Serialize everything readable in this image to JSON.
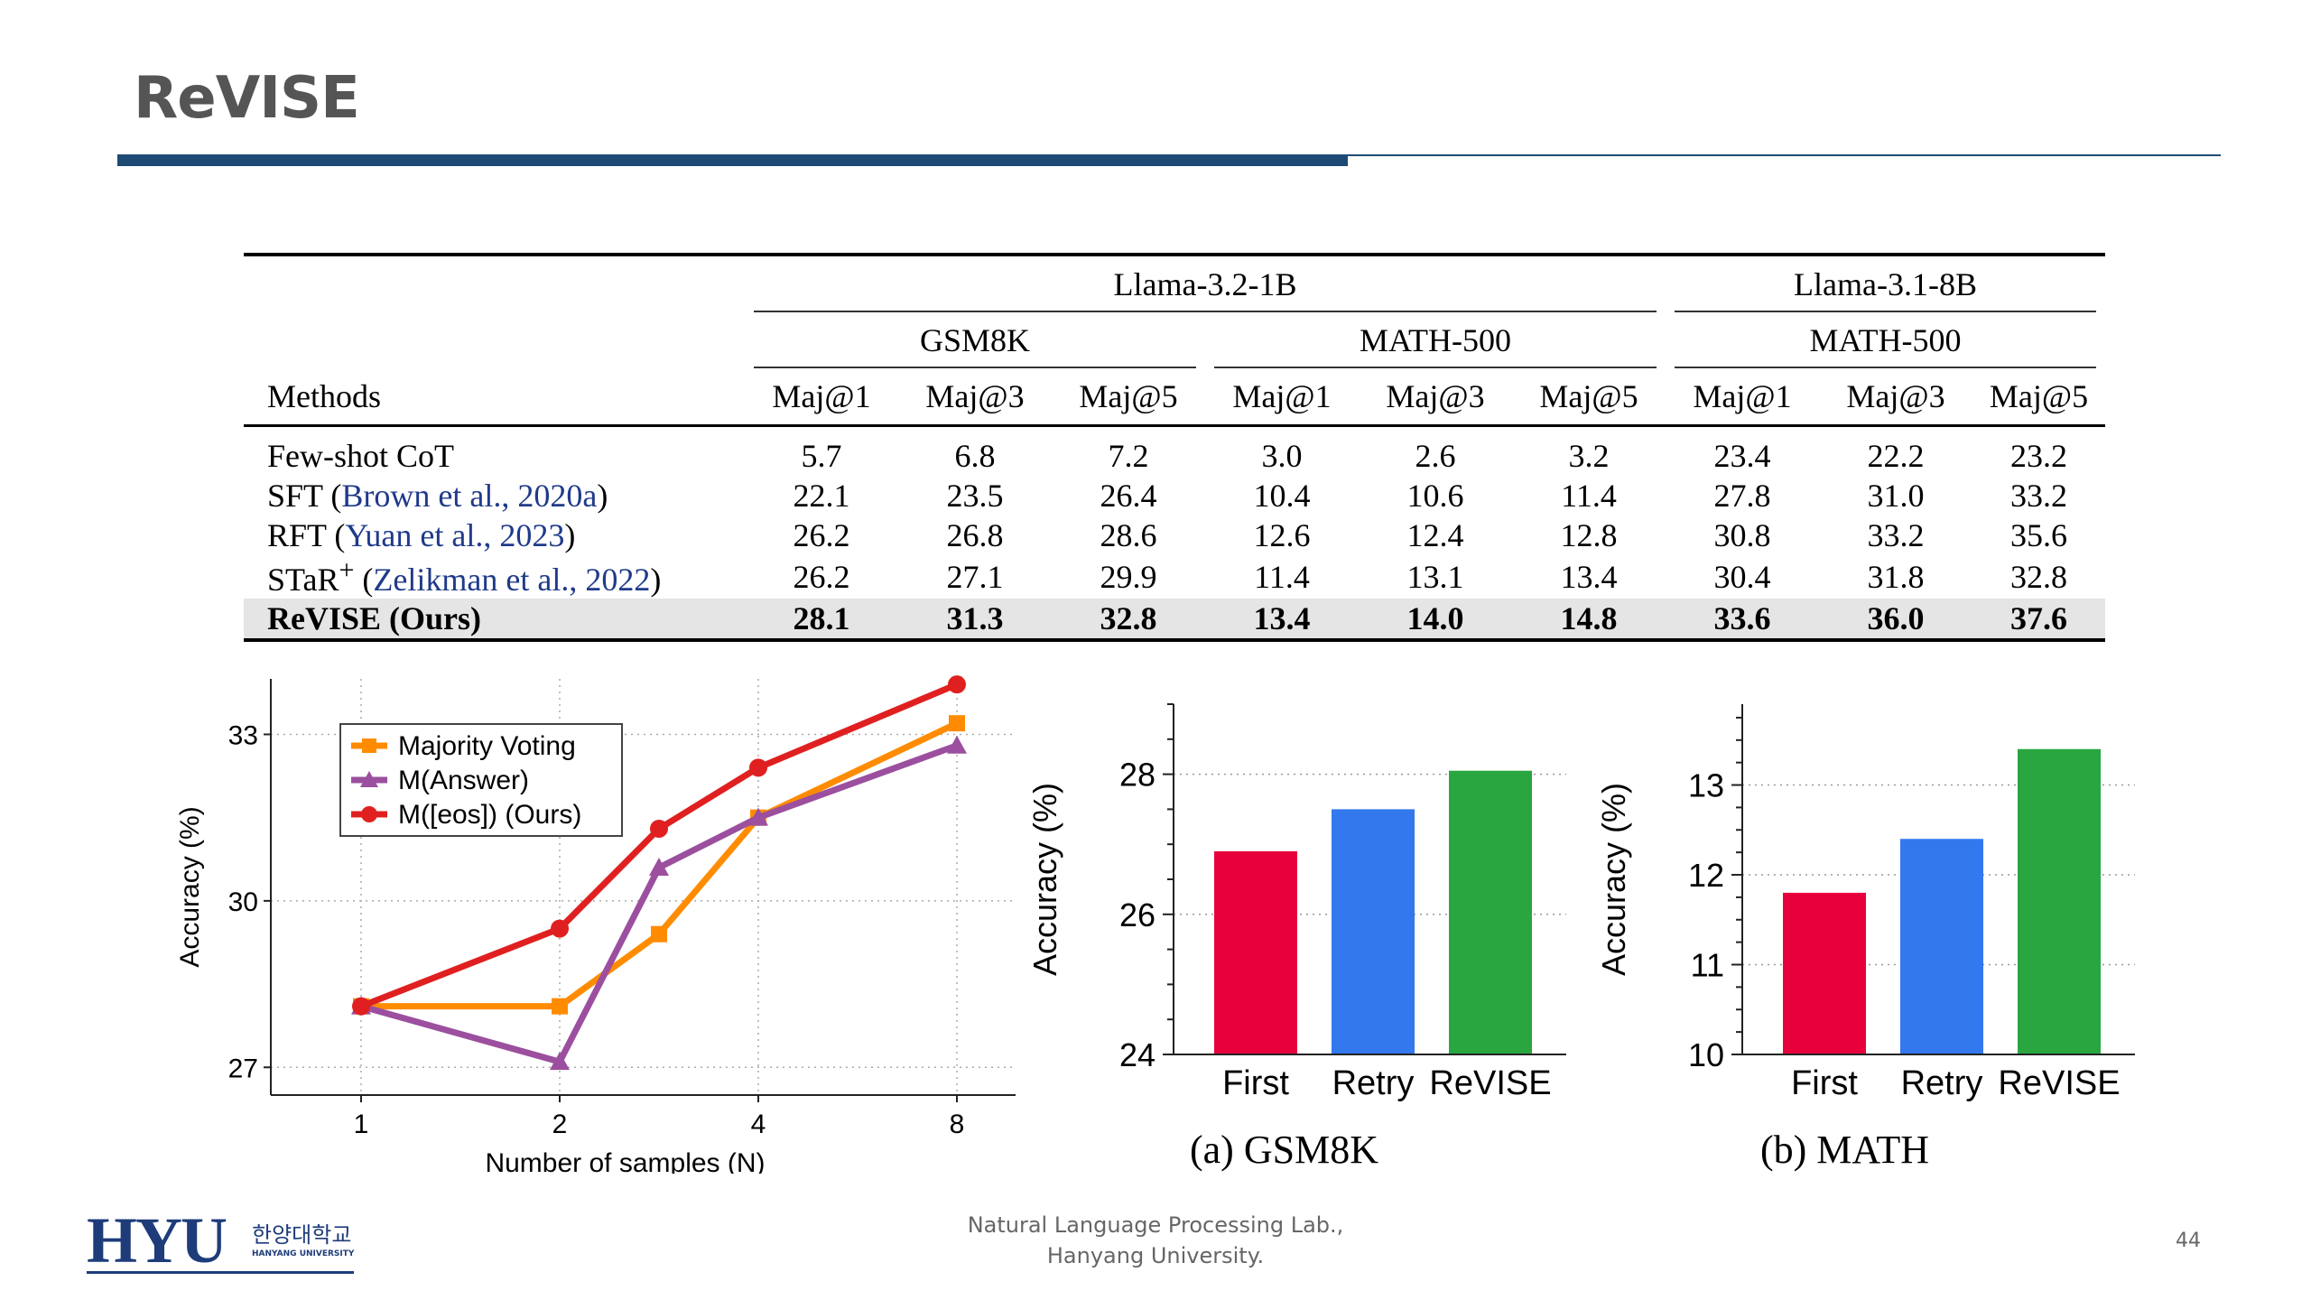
{
  "slide": {
    "title": "ReVISE",
    "footer_line1": "Natural Language Processing Lab.,",
    "footer_line2": "Hanyang University.",
    "page_number": "44",
    "logo_text": "HYU",
    "logo_korean": "한양대학교",
    "logo_english": "HANYANG UNIVERSITY",
    "accent_color": "#1e4b75"
  },
  "table": {
    "model_headers": [
      "Llama-3.2-1B",
      "Llama-3.1-8B"
    ],
    "dataset_headers": [
      "GSM8K",
      "MATH-500",
      "MATH-500"
    ],
    "methods_header": "Methods",
    "metric_headers": [
      "Maj@1",
      "Maj@3",
      "Maj@5",
      "Maj@1",
      "Maj@3",
      "Maj@5",
      "Maj@1",
      "Maj@3",
      "Maj@5"
    ],
    "rows": [
      {
        "name": "Few-shot CoT",
        "cite_pre": "",
        "cite": "",
        "cite_post": "",
        "values": [
          "5.7",
          "6.8",
          "7.2",
          "3.0",
          "2.6",
          "3.2",
          "23.4",
          "22.2",
          "23.2"
        ]
      },
      {
        "name": "SFT",
        "cite_pre": "(",
        "cite": "Brown et al., 2020a",
        "cite_post": ")",
        "values": [
          "22.1",
          "23.5",
          "26.4",
          "10.4",
          "10.6",
          "11.4",
          "27.8",
          "31.0",
          "33.2"
        ]
      },
      {
        "name": "RFT",
        "cite_pre": "(",
        "cite": "Yuan et al., 2023",
        "cite_post": ")",
        "values": [
          "26.2",
          "26.8",
          "28.6",
          "12.6",
          "12.4",
          "12.8",
          "30.8",
          "33.2",
          "35.6"
        ]
      },
      {
        "name": "STaR",
        "sup": "+",
        "cite_pre": "(",
        "cite": "Zelikman et al., 2022",
        "cite_post": ")",
        "values": [
          "26.2",
          "27.1",
          "29.9",
          "11.4",
          "13.1",
          "13.4",
          "30.4",
          "31.8",
          "32.8"
        ]
      }
    ],
    "ours": {
      "name": "ReVISE (Ours)",
      "values": [
        "28.1",
        "31.3",
        "32.8",
        "13.4",
        "14.0",
        "14.8",
        "33.6",
        "36.0",
        "37.6"
      ]
    }
  },
  "chart_data": [
    {
      "type": "line",
      "xlabel": "Number of samples (N)",
      "ylabel": "Accuracy (%)",
      "x": [
        1,
        2,
        4,
        8
      ],
      "x_scale": "log2",
      "ylim": [
        26.5,
        34
      ],
      "yticks": [
        27,
        30,
        33
      ],
      "grid": true,
      "legend_position": "top-left",
      "series": [
        {
          "name": "Majority Voting",
          "color": "#ff8c00",
          "marker": "square",
          "x": [
            1,
            2,
            3,
            4,
            8
          ],
          "y": [
            28.1,
            28.1,
            29.4,
            31.5,
            33.2
          ]
        },
        {
          "name": "M(Answer)",
          "color": "#9b4f9e",
          "marker": "triangle",
          "x": [
            1,
            2,
            3,
            4,
            8
          ],
          "y": [
            28.1,
            27.1,
            30.6,
            31.5,
            32.8
          ]
        },
        {
          "name": "M([eos]) (Ours)",
          "color": "#e02020",
          "marker": "circle",
          "x": [
            1,
            2,
            3,
            4,
            8
          ],
          "y": [
            28.1,
            29.5,
            31.3,
            32.4,
            33.9
          ]
        }
      ]
    },
    {
      "type": "bar",
      "caption": "(a) GSM8K",
      "ylabel": "Accuracy (%)",
      "categories": [
        "First",
        "Retry",
        "ReVISE"
      ],
      "values": [
        26.9,
        27.5,
        28.05
      ],
      "colors": [
        "#e8003d",
        "#3378ed",
        "#2aa640"
      ],
      "ylim": [
        24,
        29
      ],
      "yticks": [
        24,
        26,
        28
      ],
      "grid": true
    },
    {
      "type": "bar",
      "caption": "(b) MATH",
      "ylabel": "Accuracy (%)",
      "categories": [
        "First",
        "Retry",
        "ReVISE"
      ],
      "values": [
        11.8,
        12.4,
        13.4
      ],
      "colors": [
        "#e8003d",
        "#3378ed",
        "#2aa640"
      ],
      "ylim": [
        10,
        13.9
      ],
      "yticks": [
        10,
        11,
        12,
        13
      ],
      "grid": true
    }
  ]
}
